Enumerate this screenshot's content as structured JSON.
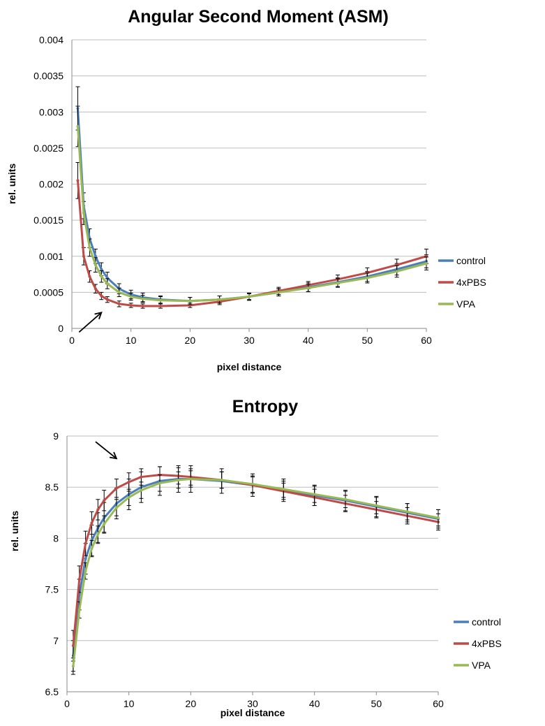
{
  "chart_data": [
    {
      "type": "line",
      "title": "Angular Second Moment (ASM)",
      "xlabel": "pixel distance",
      "ylabel": "rel. units",
      "xlim": [
        0,
        60
      ],
      "ylim": [
        0,
        0.004
      ],
      "xticks": [
        "0",
        "10",
        "20",
        "30",
        "40",
        "50",
        "60"
      ],
      "yticks": [
        "0",
        "0.0005",
        "0.001",
        "0.0015",
        "0.002",
        "0.0025",
        "0.003",
        "0.0035",
        "0.004"
      ],
      "grid": true,
      "legend": "right",
      "error_bars": true,
      "x": [
        1,
        2,
        3,
        4,
        5,
        6,
        8,
        10,
        12,
        15,
        20,
        25,
        30,
        35,
        40,
        45,
        50,
        55,
        60
      ],
      "series": [
        {
          "name": "control",
          "color": "#4a7ebb",
          "values": [
            0.00305,
            0.0017,
            0.00125,
            0.001,
            0.00082,
            0.0007,
            0.00055,
            0.00047,
            0.00043,
            0.0004,
            0.00038,
            0.0004,
            0.00044,
            0.0005,
            0.00057,
            0.00064,
            0.00072,
            0.00082,
            0.00093
          ],
          "errors": [
            0.0003,
            0.00018,
            0.00013,
            0.0001,
            9e-05,
            8e-05,
            7e-05,
            6e-05,
            6e-05,
            5e-05,
            5e-05,
            5e-05,
            5e-05,
            5e-05,
            6e-05,
            6e-05,
            7e-05,
            8e-05,
            9e-05
          ]
        },
        {
          "name": "4xPBS",
          "color": "#be4b48",
          "values": [
            0.00205,
            0.001,
            0.00072,
            0.00055,
            0.00045,
            0.0004,
            0.00034,
            0.00032,
            0.00031,
            0.00031,
            0.00032,
            0.00037,
            0.00044,
            0.00052,
            0.0006,
            0.00068,
            0.00077,
            0.00088,
            0.001
          ],
          "errors": [
            0.00025,
            0.00012,
            8e-05,
            6e-05,
            5e-05,
            4e-05,
            4e-05,
            3e-05,
            3e-05,
            3e-05,
            3e-05,
            4e-05,
            4e-05,
            5e-05,
            5e-05,
            6e-05,
            7e-05,
            8e-05,
            0.0001
          ]
        },
        {
          "name": "VPA",
          "color": "#98b954",
          "values": [
            0.0028,
            0.0016,
            0.00112,
            0.00088,
            0.00072,
            0.00062,
            0.0005,
            0.00044,
            0.00041,
            0.00039,
            0.00038,
            0.0004,
            0.00044,
            0.0005,
            0.00056,
            0.00063,
            0.0007,
            0.00079,
            0.0009
          ],
          "errors": [
            0.00028,
            0.00016,
            0.00012,
            0.0001,
            8e-05,
            7e-05,
            6e-05,
            5e-05,
            5e-05,
            5e-05,
            5e-05,
            5e-05,
            5e-05,
            5e-05,
            5e-05,
            6e-05,
            7e-05,
            8e-05,
            9e-05
          ]
        }
      ],
      "annotations": [
        {
          "type": "arrow",
          "target_x": 5,
          "target_y": 0.00022
        }
      ]
    },
    {
      "type": "line",
      "title": "Entropy",
      "xlabel": "pixel distance",
      "ylabel": "rel. units",
      "xlim": [
        0,
        60
      ],
      "ylim": [
        6.5,
        9
      ],
      "xticks": [
        "0",
        "10",
        "20",
        "30",
        "40",
        "50",
        "60"
      ],
      "yticks": [
        "6.5",
        "7",
        "7.5",
        "8",
        "8.5",
        "9"
      ],
      "grid": true,
      "legend": "right",
      "error_bars": true,
      "x": [
        1,
        2,
        3,
        4,
        5,
        6,
        8,
        10,
        12,
        15,
        18,
        20,
        25,
        30,
        35,
        40,
        45,
        50,
        55,
        60
      ],
      "series": [
        {
          "name": "control",
          "color": "#4a7ebb",
          "values": [
            6.85,
            7.45,
            7.8,
            7.98,
            8.1,
            8.2,
            8.34,
            8.43,
            8.5,
            8.56,
            8.58,
            8.58,
            8.56,
            8.52,
            8.47,
            8.42,
            8.37,
            8.31,
            8.25,
            8.19
          ],
          "errors": [
            0.15,
            0.15,
            0.15,
            0.15,
            0.15,
            0.15,
            0.15,
            0.15,
            0.15,
            0.14,
            0.13,
            0.13,
            0.12,
            0.11,
            0.11,
            0.1,
            0.1,
            0.1,
            0.09,
            0.09
          ]
        },
        {
          "name": "4xPBS",
          "color": "#be4b48",
          "values": [
            6.95,
            7.6,
            7.95,
            8.15,
            8.28,
            8.37,
            8.49,
            8.55,
            8.6,
            8.62,
            8.61,
            8.6,
            8.57,
            8.52,
            8.46,
            8.4,
            8.34,
            8.28,
            8.22,
            8.16
          ],
          "errors": [
            0.15,
            0.13,
            0.12,
            0.11,
            0.1,
            0.1,
            0.09,
            0.09,
            0.08,
            0.08,
            0.08,
            0.08,
            0.08,
            0.08,
            0.08,
            0.08,
            0.08,
            0.08,
            0.08,
            0.08
          ]
        },
        {
          "name": "VPA",
          "color": "#98b954",
          "values": [
            6.75,
            7.3,
            7.68,
            7.9,
            8.04,
            8.14,
            8.3,
            8.4,
            8.47,
            8.54,
            8.57,
            8.58,
            8.57,
            8.53,
            8.48,
            8.43,
            8.38,
            8.32,
            8.26,
            8.2
          ],
          "errors": [
            0.08,
            0.08,
            0.08,
            0.08,
            0.08,
            0.08,
            0.08,
            0.08,
            0.08,
            0.08,
            0.08,
            0.08,
            0.08,
            0.08,
            0.08,
            0.08,
            0.08,
            0.08,
            0.08,
            0.08
          ]
        }
      ],
      "annotations": [
        {
          "type": "arrow",
          "target_x": 8,
          "target_y": 8.78
        }
      ]
    }
  ]
}
